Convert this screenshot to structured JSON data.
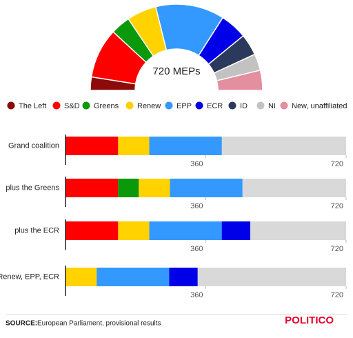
{
  "chart_data": [
    {
      "type": "semicircle",
      "center_label": "720 MEPs",
      "categories": [
        "The Left",
        "S&D",
        "Greens",
        "Renew",
        "EPP",
        "ECR",
        "ID",
        "NI",
        "New, unaffiliated"
      ],
      "values": [
        36,
        135,
        53,
        80,
        186,
        73,
        58,
        45,
        54
      ],
      "colors": [
        "#8b0a0a",
        "#ff0000",
        "#0a990a",
        "#ffd200",
        "#3399ff",
        "#0000e8",
        "#2b3a5c",
        "#c2c2c2",
        "#e38fa0"
      ]
    },
    {
      "type": "bar",
      "orientation": "horizontal",
      "stacked": true,
      "categories": [
        "Grand coalition",
        "plus the Greens",
        "plus the ECR",
        "Renew, EPP, ECR"
      ],
      "series": [
        {
          "name": "S&D",
          "color": "#ff0000",
          "values": [
            135,
            135,
            135,
            null
          ]
        },
        {
          "name": "Greens",
          "color": "#0a990a",
          "values": [
            null,
            53,
            null,
            null
          ]
        },
        {
          "name": "Renew",
          "color": "#ffd200",
          "values": [
            80,
            80,
            80,
            80
          ]
        },
        {
          "name": "EPP",
          "color": "#3399ff",
          "values": [
            186,
            186,
            186,
            186
          ]
        },
        {
          "name": "ECR",
          "color": "#0000e8",
          "values": [
            null,
            null,
            73,
            73
          ]
        }
      ],
      "xlim": [
        0,
        720
      ],
      "xticks": [
        360,
        720
      ],
      "track_color": "#d9d9d9"
    }
  ],
  "footer": {
    "source_label": "SOURCE:",
    "source": "European Parliament, provisional results",
    "brand": "POLITICO"
  }
}
